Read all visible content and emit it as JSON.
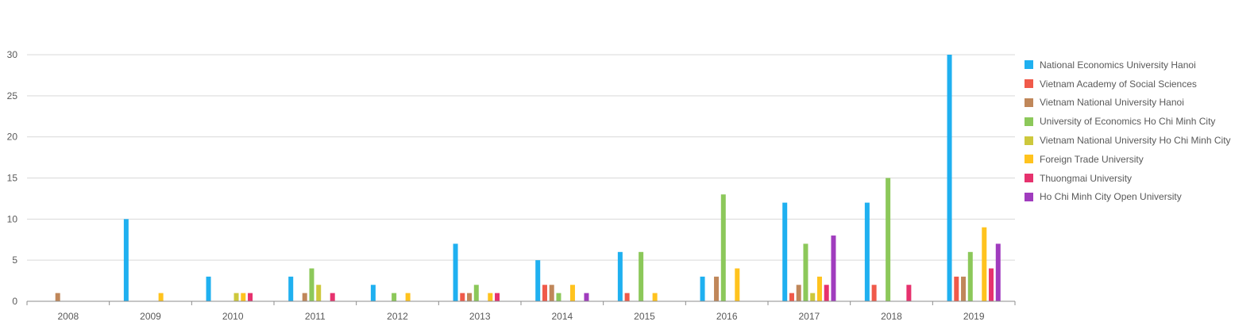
{
  "chart_data": {
    "type": "bar",
    "categories": [
      "2008",
      "2009",
      "2010",
      "2011",
      "2012",
      "2013",
      "2014",
      "2015",
      "2016",
      "2017",
      "2018",
      "2019"
    ],
    "ylim": [
      0,
      30
    ],
    "yticks": [
      "0",
      "5",
      "10",
      "15",
      "20",
      "25",
      "30"
    ],
    "grid": true,
    "legend_position": "right",
    "series": [
      {
        "name": "National Economics University Hanoi",
        "color": "#1FB0F0",
        "values": [
          0,
          10,
          3,
          3,
          2,
          7,
          5,
          6,
          3,
          12,
          12,
          30
        ]
      },
      {
        "name": "Vietnam Academy of Social Sciences",
        "color": "#F05A4A",
        "values": [
          0,
          0,
          0,
          0,
          0,
          1,
          2,
          1,
          0,
          1,
          2,
          3
        ]
      },
      {
        "name": "Vietnam National University Hanoi",
        "color": "#C0875A",
        "values": [
          1,
          0,
          0,
          1,
          0,
          1,
          2,
          0,
          3,
          2,
          0,
          3
        ]
      },
      {
        "name": "University of Economics Ho Chi Minh City",
        "color": "#8CC85A",
        "values": [
          0,
          0,
          0,
          4,
          1,
          2,
          1,
          6,
          13,
          7,
          15,
          6
        ]
      },
      {
        "name": "Vietnam National University Ho Chi Minh City",
        "color": "#CDC83C",
        "values": [
          0,
          0,
          1,
          2,
          0,
          0,
          0,
          0,
          0,
          1,
          0,
          0
        ]
      },
      {
        "name": "Foreign Trade University",
        "color": "#FFC31E",
        "values": [
          0,
          1,
          1,
          0,
          1,
          1,
          2,
          1,
          4,
          3,
          0,
          9
        ]
      },
      {
        "name": "Thuongmai University",
        "color": "#E6326E",
        "values": [
          0,
          0,
          1,
          1,
          0,
          1,
          0,
          0,
          0,
          2,
          2,
          4
        ]
      },
      {
        "name": "Ho Chi Minh City Open University",
        "color": "#A03CBE",
        "values": [
          0,
          0,
          0,
          0,
          0,
          0,
          1,
          0,
          0,
          8,
          0,
          7
        ]
      }
    ]
  }
}
